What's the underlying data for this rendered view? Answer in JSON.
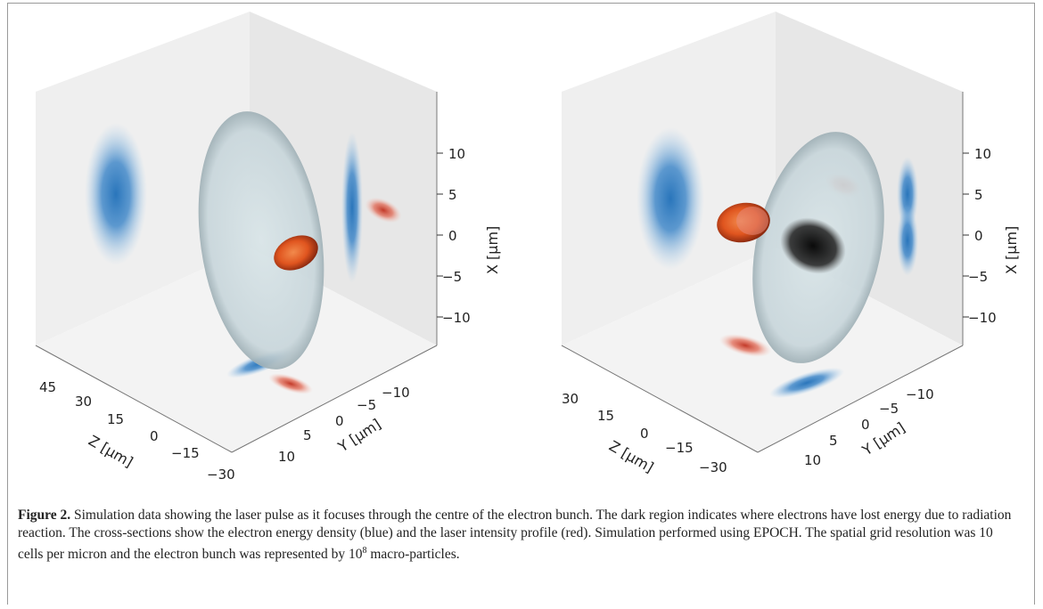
{
  "figure": {
    "caption": {
      "label": "Figure 2.",
      "text_main": " Simulation data showing the laser pulse as it focuses through the centre of the electron bunch. The dark region indicates where electrons have lost energy due to radiation reaction. The cross-sections show the electron energy density (blue) and the laser intensity profile (red). Simulation performed using EPOCH. The spatial grid resolution was 10 cells per micron and the electron bunch was represented by ",
      "power_base": "10",
      "power_exp": "8",
      "text_end": " macro-particles."
    },
    "panels": [
      {
        "x_label": "X [μm]",
        "y_label": "Y [μm]",
        "z_label": "Z [μm]",
        "x_ticks": [
          "10",
          "5",
          "0",
          "−5",
          "−10"
        ],
        "y_ticks": [
          "−10",
          "−5",
          "0",
          "5",
          "10"
        ],
        "z_ticks": [
          "45",
          "30",
          "15",
          "0",
          "−15",
          "−30"
        ]
      },
      {
        "x_label": "X [μm]",
        "y_label": "Y [μm]",
        "z_label": "Z [μm]",
        "x_ticks": [
          "10",
          "5",
          "0",
          "−5",
          "−10"
        ],
        "y_ticks": [
          "−10",
          "−5",
          "0",
          "5",
          "10"
        ],
        "z_ticks": [
          "30",
          "15",
          "0",
          "−15",
          "−30"
        ]
      }
    ],
    "colors": {
      "electron_density": "#1f6fb8",
      "laser_intensity": "#d84a2a",
      "radiation_region": "#111111",
      "pane": "#ececec"
    }
  }
}
